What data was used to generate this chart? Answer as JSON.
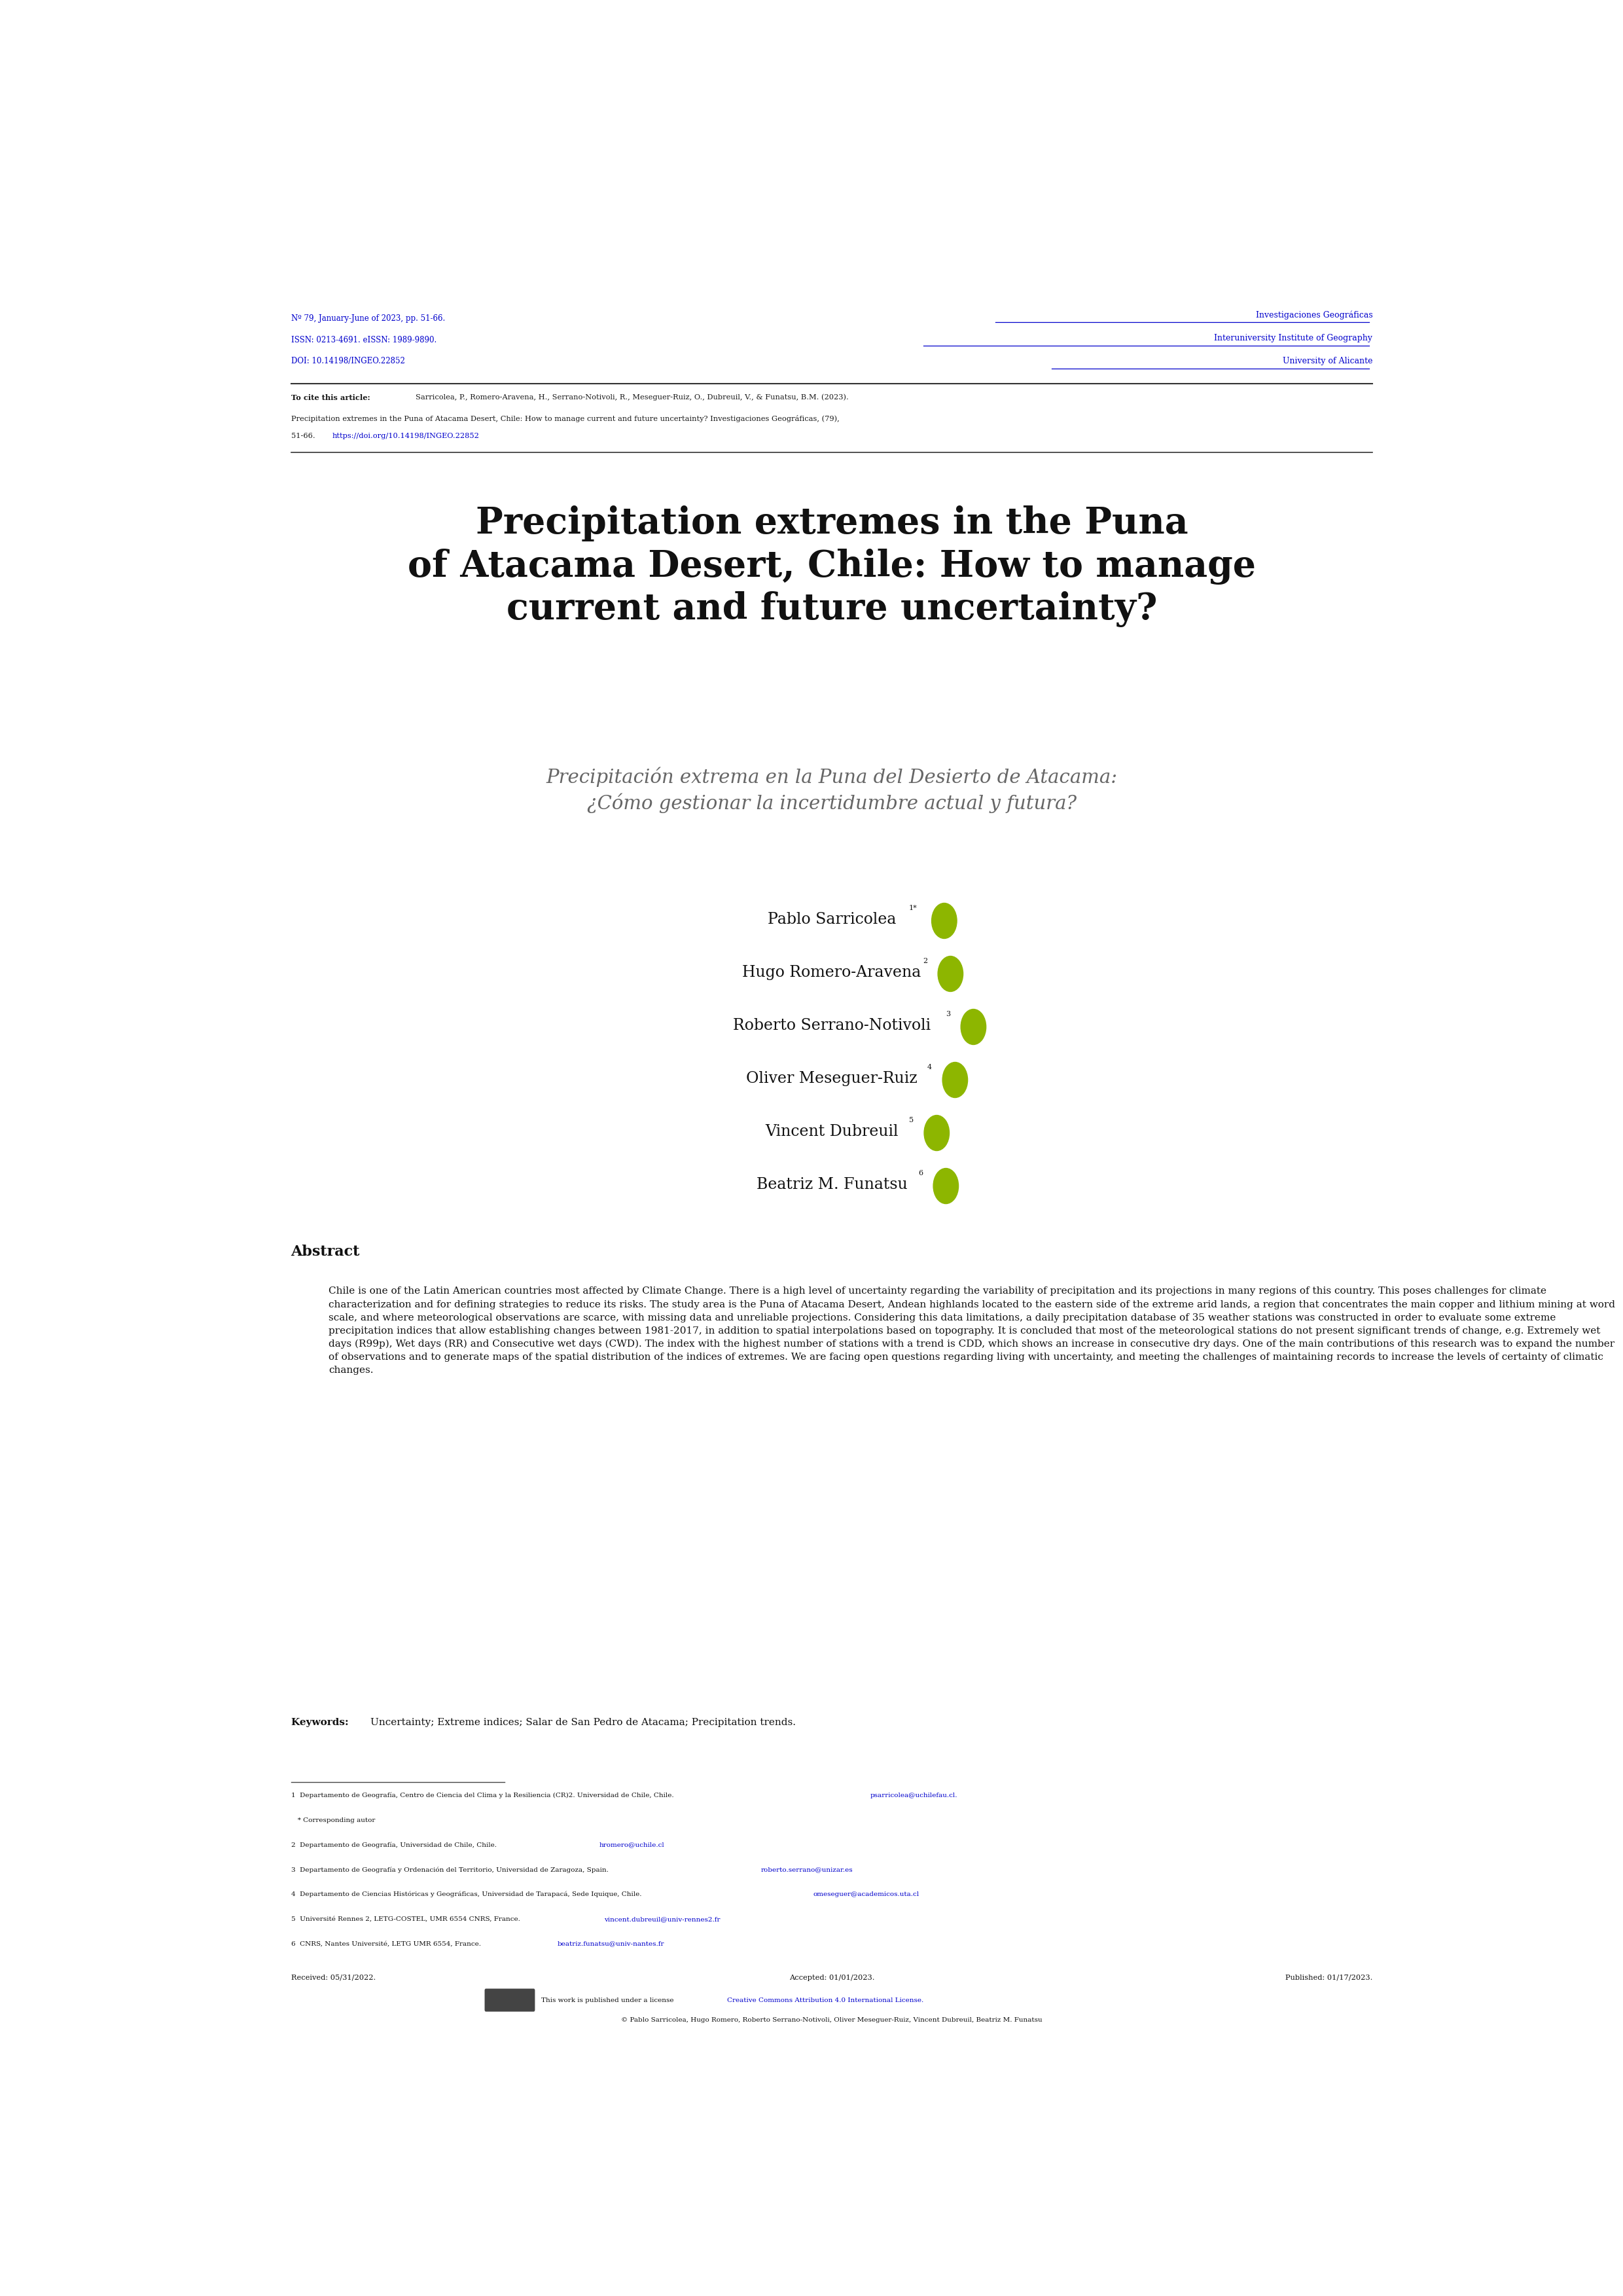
{
  "page_width": 24.8,
  "page_height": 35.07,
  "bg_color": "#ffffff",
  "header_left_lines": [
    "Nº 79, January-June of 2023, pp. 51-66.",
    "ISSN: 0213-4691. eISSN: 1989-9890.",
    "DOI: 10.14198/INGEO.22852"
  ],
  "header_right_lines": [
    "Investigaciones Geográficas",
    "Interuniversity Institute of Geography",
    "University of Alicante"
  ],
  "cite_label": "To cite this article: ",
  "cite_text": "Sarricolea, P., Romero-Aravena, H., Serrano-Notivoli, R., Meseguer-Ruiz, O., Dubreuil, V., & Funatsu, B.M. (2023). Precipitation extremes in the Puna of Atacama Desert, Chile: How to manage current and future uncertainty? ",
  "cite_journal": "Investigaciones Geográficas",
  "cite_end": ", (79), 51-66. ",
  "cite_doi_text": "https://doi.org/10.14198/INGEO.22852",
  "main_title": "Precipitation extremes in the Puna\nof Atacama Desert, Chile: How to manage\ncurrent and future uncertainty?",
  "subtitle": "Precipitación extrema en la Puna del Desierto de Atacama:\n¿Cómo gestionar la incertidumbre actual y futura?",
  "authors": [
    {
      "name": "Pablo Sarricolea",
      "sup": "1*"
    },
    {
      "name": "Hugo Romero-Aravena",
      "sup": "2"
    },
    {
      "name": "Roberto Serrano-Notivoli",
      "sup": "3"
    },
    {
      "name": "Oliver Meseguer-Ruiz",
      "sup": "4"
    },
    {
      "name": "Vincent Dubreuil",
      "sup": "5"
    },
    {
      "name": "Beatriz M. Funatsu",
      "sup": "6"
    }
  ],
  "abstract_title": "Abstract",
  "abstract_text": "Chile is one of the Latin American countries most affected by Climate Change. There is a high level of uncertainty regarding the variability of precipitation and its projections in many regions of this country. This poses challenges for climate characterization and for defining strategies to reduce its risks. The study area is the Puna of Atacama Desert, Andean highlands located to the eastern side of the extreme arid lands, a region that concentrates the main copper and lithium mining at word scale, and where meteorological observations are scarce, with missing data and unreliable projections. Considering this data limitations, a daily precipitation database of 35 weather stations was constructed in order to evaluate some extreme precipitation indices that allow establishing changes between 1981-2017, in addition to spatial interpolations based on topography. It is concluded that most of the meteorological stations do not present significant trends of change, e.g. Extremely wet days (R99p), Wet days (RR) and Consecutive wet days (CWD). The index with the highest number of stations with a trend is CDD, which shows an increase in consecutive dry days. One of the main contributions of this research was to expand the number of observations and to generate maps of the spatial distribution of the indices of extremes. We are facing open questions regarding living with uncertainty, and meeting the challenges of maintaining records to increase the levels of certainty of climatic changes.",
  "keywords_label": "Keywords: ",
  "keywords_text": "Uncertainty; Extreme indices; Salar de San Pedro de Atacama; Precipitation trends.",
  "footnote_items": [
    {
      "normal": "1  Departamento de Geografía, Centro de Ciencia del Clima y la Resiliencia (CR)2. Universidad de Chile, Chile. ",
      "blue": "psarricolea@uchilefau.cl",
      "end": "."
    },
    {
      "normal": "   * Corresponding autor",
      "blue": "",
      "end": ""
    },
    {
      "normal": "2  Departamento de Geografía, Universidad de Chile, Chile. ",
      "blue": "hromero@uchile.cl",
      "end": ""
    },
    {
      "normal": "3  Departamento de Geografía y Ordenación del Territorio, Universidad de Zaragoza, Spain. ",
      "blue": "roberto.serrano@unizar.es",
      "end": ""
    },
    {
      "normal": "4  Departamento de Ciencias Históricas y Geográficas, Universidad de Tarapacá, Sede Iquique, Chile. ",
      "blue": "omeseguer@academicos.uta.cl",
      "end": ""
    },
    {
      "normal": "5  Université Rennes 2, LETG-COSTEL, UMR 6554 CNRS, France. ",
      "blue": "vincent.dubreuil@univ-rennes2.fr",
      "end": ""
    },
    {
      "normal": "6  CNRS, Nantes Université, LETG UMR 6554, France. ",
      "blue": "beatriz.funatsu@univ-nantes.fr",
      "end": ""
    }
  ],
  "received_text": "Received: 05/31/2022.",
  "accepted_text": "Accepted: 01/01/2023.",
  "published_text": "Published: 01/17/2023.",
  "cc_license_text": "This work is published under a license ",
  "cc_license_link": "Creative Commons Attribution 4.0 International License",
  "copyright_text": "© Pablo Sarricolea, Hugo Romero, Roberto Serrano-Notivoli, Oliver Meseguer-Ruiz, Vincent Dubreuil, Beatriz M. Funatsu",
  "blue_color": "#0000cc",
  "gray_color": "#808080",
  "olive_color": "#8db600",
  "text_color": "#1a1a1a"
}
